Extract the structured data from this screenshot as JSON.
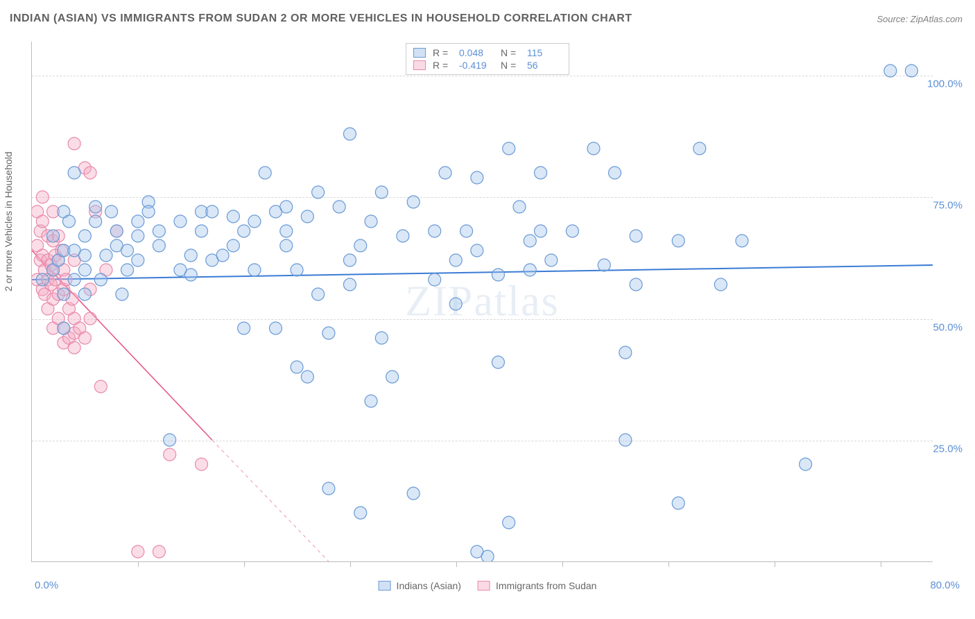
{
  "title": "INDIAN (ASIAN) VS IMMIGRANTS FROM SUDAN 2 OR MORE VEHICLES IN HOUSEHOLD CORRELATION CHART",
  "source": "Source: ZipAtlas.com",
  "y_axis_label": "2 or more Vehicles in Household",
  "watermark": "ZIPatlas",
  "chart": {
    "type": "scatter",
    "xlim": [
      0,
      85
    ],
    "ylim": [
      0,
      107
    ],
    "x_tick_positions": [
      10,
      20,
      30,
      40,
      50,
      60,
      70,
      80
    ],
    "x_tick_labels": {
      "left": "0.0%",
      "right": "80.0%"
    },
    "y_grid": [
      {
        "value": 25,
        "label": "25.0%"
      },
      {
        "value": 50,
        "label": "50.0%"
      },
      {
        "value": 75,
        "label": "75.0%"
      },
      {
        "value": 100,
        "label": "100.0%"
      }
    ],
    "marker_radius": 9,
    "background_color": "#ffffff",
    "grid_color": "#d8d8d8",
    "axis_color": "#bbbbbb"
  },
  "legend_top": [
    {
      "swatch": "blue",
      "r_label": "R =",
      "r_val": "0.048",
      "n_label": "N =",
      "n_val": "115"
    },
    {
      "swatch": "pink",
      "r_label": "R =",
      "r_val": "-0.419",
      "n_label": "N =",
      "n_val": "56"
    }
  ],
  "legend_bottom": [
    {
      "swatch": "blue",
      "label": "Indians (Asian)"
    },
    {
      "swatch": "pink",
      "label": "Immigrants from Sudan"
    }
  ],
  "series": {
    "blue": {
      "color_fill": "rgba(160,195,235,0.4)",
      "color_stroke": "#6a9ad6",
      "trend": {
        "x1": 0,
        "y1": 58,
        "x2": 85,
        "y2": 61,
        "stroke": "#3a7bd5",
        "width": 2
      },
      "points": [
        [
          1,
          58
        ],
        [
          2,
          60
        ],
        [
          2,
          67
        ],
        [
          2.5,
          62
        ],
        [
          3,
          55
        ],
        [
          3,
          64
        ],
        [
          3,
          72
        ],
        [
          3.5,
          70
        ],
        [
          3,
          48
        ],
        [
          4,
          58
        ],
        [
          4,
          64
        ],
        [
          4,
          80
        ],
        [
          5,
          63
        ],
        [
          5,
          60
        ],
        [
          5,
          55
        ],
        [
          5,
          67
        ],
        [
          6,
          70
        ],
        [
          6,
          73
        ],
        [
          6.5,
          58
        ],
        [
          7,
          63
        ],
        [
          7.5,
          72
        ],
        [
          8,
          68
        ],
        [
          8,
          65
        ],
        [
          8.5,
          55
        ],
        [
          9,
          60
        ],
        [
          9,
          64
        ],
        [
          10,
          70
        ],
        [
          10,
          67
        ],
        [
          10,
          62
        ],
        [
          11,
          74
        ],
        [
          11,
          72
        ],
        [
          12,
          65
        ],
        [
          12,
          68
        ],
        [
          13,
          25
        ],
        [
          14,
          60
        ],
        [
          14,
          70
        ],
        [
          15,
          63
        ],
        [
          15,
          59
        ],
        [
          16,
          72
        ],
        [
          16,
          68
        ],
        [
          17,
          72
        ],
        [
          17,
          62
        ],
        [
          18,
          63
        ],
        [
          19,
          71
        ],
        [
          19,
          65
        ],
        [
          20,
          48
        ],
        [
          20,
          68
        ],
        [
          21,
          70
        ],
        [
          21,
          60
        ],
        [
          22,
          80
        ],
        [
          23,
          72
        ],
        [
          23,
          48
        ],
        [
          24,
          68
        ],
        [
          24,
          65
        ],
        [
          24,
          73
        ],
        [
          25,
          60
        ],
        [
          26,
          71
        ],
        [
          25,
          40
        ],
        [
          26,
          38
        ],
        [
          27,
          55
        ],
        [
          27,
          76
        ],
        [
          28,
          15
        ],
        [
          28,
          47
        ],
        [
          29,
          73
        ],
        [
          30,
          88
        ],
        [
          30,
          57
        ],
        [
          30,
          62
        ],
        [
          31,
          10
        ],
        [
          31,
          65
        ],
        [
          32,
          33
        ],
        [
          32,
          70
        ],
        [
          33,
          76
        ],
        [
          33,
          46
        ],
        [
          34,
          38
        ],
        [
          35,
          67
        ],
        [
          36,
          14
        ],
        [
          36,
          74
        ],
        [
          38,
          68
        ],
        [
          38,
          58
        ],
        [
          39,
          80
        ],
        [
          40,
          53
        ],
        [
          40,
          62
        ],
        [
          41,
          68
        ],
        [
          42,
          79
        ],
        [
          42,
          64
        ],
        [
          42,
          2
        ],
        [
          43,
          1
        ],
        [
          44,
          59
        ],
        [
          44,
          41
        ],
        [
          45,
          8
        ],
        [
          45,
          85
        ],
        [
          46,
          73
        ],
        [
          47,
          66
        ],
        [
          47,
          60
        ],
        [
          48,
          80
        ],
        [
          48,
          68
        ],
        [
          49,
          62
        ],
        [
          51,
          68
        ],
        [
          53,
          85
        ],
        [
          54,
          61
        ],
        [
          55,
          80
        ],
        [
          56,
          43
        ],
        [
          56,
          25
        ],
        [
          57,
          57
        ],
        [
          57,
          67
        ],
        [
          61,
          66
        ],
        [
          61,
          12
        ],
        [
          63,
          85
        ],
        [
          65,
          57
        ],
        [
          67,
          66
        ],
        [
          73,
          20
        ],
        [
          81,
          101
        ],
        [
          83,
          101
        ]
      ]
    },
    "pink": {
      "color_fill": "rgba(245,170,195,0.4)",
      "color_stroke": "#e88aaa",
      "trend_solid": {
        "x1": 0,
        "y1": 64,
        "x2": 17,
        "y2": 25,
        "stroke": "#e65a8a",
        "width": 1.6
      },
      "trend_dash": {
        "x1": 17,
        "y1": 25,
        "x2": 28,
        "y2": 0,
        "stroke": "#f0a8be",
        "width": 1.2,
        "dash": "5,5"
      },
      "points": [
        [
          0.5,
          72
        ],
        [
          0.5,
          65
        ],
        [
          0.5,
          58
        ],
        [
          0.8,
          62
        ],
        [
          0.8,
          68
        ],
        [
          1,
          75
        ],
        [
          1,
          70
        ],
        [
          1,
          63
        ],
        [
          1,
          56
        ],
        [
          1.2,
          60
        ],
        [
          1.2,
          55
        ],
        [
          1.5,
          67
        ],
        [
          1.5,
          62
        ],
        [
          1.5,
          58
        ],
        [
          1.5,
          52
        ],
        [
          1.8,
          61
        ],
        [
          1.8,
          57
        ],
        [
          2,
          72
        ],
        [
          2,
          66
        ],
        [
          2,
          60
        ],
        [
          2,
          54
        ],
        [
          2,
          48
        ],
        [
          2.2,
          63
        ],
        [
          2.2,
          58
        ],
        [
          2.5,
          67
        ],
        [
          2.5,
          62
        ],
        [
          2.5,
          55
        ],
        [
          2.5,
          50
        ],
        [
          2.8,
          64
        ],
        [
          3,
          60
        ],
        [
          3,
          56
        ],
        [
          3,
          48
        ],
        [
          3,
          45
        ],
        [
          3.2,
          58
        ],
        [
          3.5,
          52
        ],
        [
          3.5,
          46
        ],
        [
          3.8,
          54
        ],
        [
          4,
          86
        ],
        [
          4,
          62
        ],
        [
          4,
          50
        ],
        [
          4,
          47
        ],
        [
          4,
          44
        ],
        [
          4.5,
          48
        ],
        [
          5,
          81
        ],
        [
          5,
          46
        ],
        [
          5.5,
          80
        ],
        [
          5.5,
          56
        ],
        [
          5.5,
          50
        ],
        [
          6,
          72
        ],
        [
          6.5,
          36
        ],
        [
          7,
          60
        ],
        [
          8,
          68
        ],
        [
          10,
          2
        ],
        [
          12,
          2
        ],
        [
          13,
          22
        ],
        [
          16,
          20
        ]
      ]
    }
  }
}
